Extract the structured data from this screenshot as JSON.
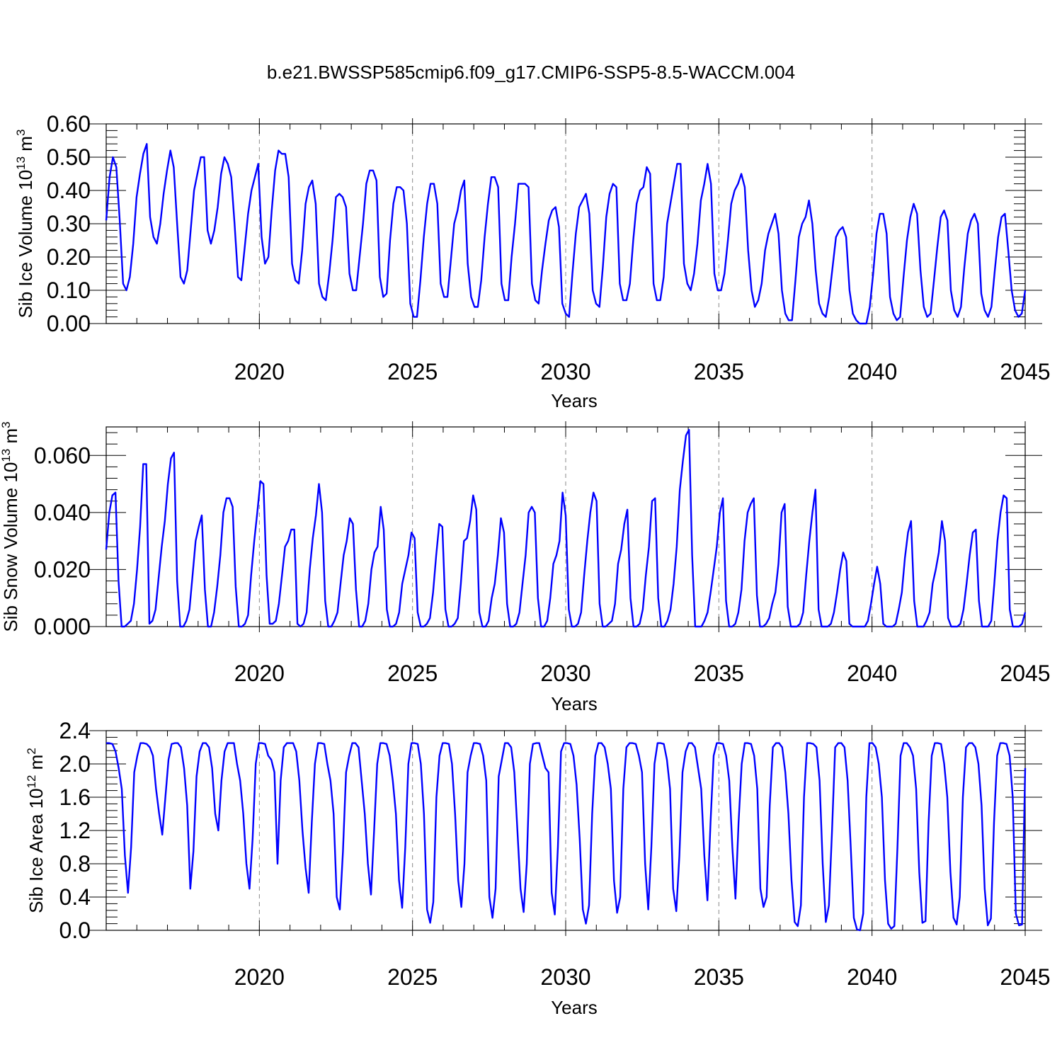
{
  "title": "b.e21.BWSSP585cmip6.f09_g17.CMIP6-SSP5-8.5-WACCM.004",
  "line_color": "#0000ff",
  "chart_data": [
    {
      "type": "line",
      "ylabel": "Sib Ice Volume 10",
      "ylabel_sup": "13",
      "ylabel_unit": " m",
      "ylabel_unit_sup": "3",
      "xlabel": "Years",
      "xlim": [
        2015,
        2045
      ],
      "ylim": [
        0,
        0.6
      ],
      "xticks": [
        2020,
        2025,
        2030,
        2035,
        2040,
        2045
      ],
      "xtick_labels": [
        "2020",
        "2025",
        "2030",
        "2035",
        "2040",
        "2045"
      ],
      "yticks": [
        0,
        0.1,
        0.2,
        0.3,
        0.4,
        0.5,
        0.6
      ],
      "ytick_labels": [
        "0.00",
        "0.10",
        "0.20",
        "0.30",
        "0.40",
        "0.50",
        "0.60"
      ],
      "grid": "dashed vertical at major x ticks",
      "series": [
        {
          "values": [
            0.31,
            0.44,
            0.5,
            0.47,
            0.31,
            0.12,
            0.1,
            0.14,
            0.24,
            0.38,
            0.45,
            0.51,
            0.54,
            0.32,
            0.26,
            0.24,
            0.3,
            0.39,
            0.46,
            0.52,
            0.47,
            0.3,
            0.14,
            0.12,
            0.16,
            0.28,
            0.4,
            0.45,
            0.5,
            0.5,
            0.28,
            0.24,
            0.28,
            0.35,
            0.45,
            0.5,
            0.48,
            0.44,
            0.3,
            0.14,
            0.13,
            0.23,
            0.33,
            0.4,
            0.44,
            0.48,
            0.26,
            0.18,
            0.2,
            0.34,
            0.46,
            0.52,
            0.51,
            0.51,
            0.44,
            0.18,
            0.13,
            0.12,
            0.22,
            0.36,
            0.41,
            0.43,
            0.36,
            0.12,
            0.08,
            0.07,
            0.15,
            0.25,
            0.38,
            0.39,
            0.38,
            0.35,
            0.15,
            0.1,
            0.1,
            0.2,
            0.3,
            0.42,
            0.46,
            0.46,
            0.43,
            0.14,
            0.08,
            0.09,
            0.25,
            0.36,
            0.41,
            0.41,
            0.4,
            0.3,
            0.06,
            0.02,
            0.02,
            0.13,
            0.26,
            0.36,
            0.42,
            0.42,
            0.36,
            0.12,
            0.08,
            0.08,
            0.19,
            0.3,
            0.34,
            0.4,
            0.43,
            0.18,
            0.08,
            0.05,
            0.05,
            0.13,
            0.26,
            0.36,
            0.44,
            0.44,
            0.41,
            0.12,
            0.07,
            0.07,
            0.2,
            0.3,
            0.42,
            0.42,
            0.42,
            0.41,
            0.12,
            0.07,
            0.06,
            0.16,
            0.24,
            0.31,
            0.34,
            0.35,
            0.29,
            0.06,
            0.03,
            0.02,
            0.15,
            0.27,
            0.35,
            0.37,
            0.39,
            0.33,
            0.1,
            0.06,
            0.05,
            0.17,
            0.32,
            0.39,
            0.42,
            0.41,
            0.12,
            0.07,
            0.07,
            0.12,
            0.25,
            0.36,
            0.4,
            0.41,
            0.47,
            0.45,
            0.12,
            0.07,
            0.07,
            0.14,
            0.3,
            0.36,
            0.42,
            0.48,
            0.48,
            0.18,
            0.12,
            0.1,
            0.15,
            0.24,
            0.37,
            0.42,
            0.48,
            0.42,
            0.15,
            0.1,
            0.1,
            0.15,
            0.25,
            0.36,
            0.4,
            0.42,
            0.45,
            0.41,
            0.22,
            0.1,
            0.05,
            0.07,
            0.12,
            0.22,
            0.27,
            0.3,
            0.33,
            0.27,
            0.1,
            0.03,
            0.01,
            0.01,
            0.13,
            0.26,
            0.3,
            0.32,
            0.37,
            0.3,
            0.16,
            0.06,
            0.03,
            0.02,
            0.08,
            0.17,
            0.26,
            0.28,
            0.29,
            0.26,
            0.1,
            0.03,
            0.01,
            0.0,
            0.0,
            0.0,
            0.05,
            0.15,
            0.27,
            0.33,
            0.33,
            0.27,
            0.08,
            0.03,
            0.01,
            0.02,
            0.14,
            0.25,
            0.32,
            0.36,
            0.33,
            0.16,
            0.05,
            0.02,
            0.03,
            0.13,
            0.23,
            0.32,
            0.34,
            0.31,
            0.1,
            0.04,
            0.02,
            0.05,
            0.17,
            0.27,
            0.31,
            0.33,
            0.3,
            0.09,
            0.04,
            0.02,
            0.05,
            0.16,
            0.26,
            0.32,
            0.33,
            0.22,
            0.1,
            0.04,
            0.02,
            0.03,
            0.1
          ]
        }
      ]
    },
    {
      "type": "line",
      "ylabel": "Sib Snow Volume 10",
      "ylabel_sup": "13",
      "ylabel_unit": " m",
      "ylabel_unit_sup": "3",
      "xlabel": "Years",
      "xlim": [
        2015,
        2045
      ],
      "ylim": [
        0,
        0.07
      ],
      "xticks": [
        2020,
        2025,
        2030,
        2035,
        2040,
        2045
      ],
      "xtick_labels": [
        "2020",
        "2025",
        "2030",
        "2035",
        "2040",
        "2045"
      ],
      "yticks": [
        0,
        0.02,
        0.04,
        0.06
      ],
      "ytick_labels": [
        "0.000",
        "0.020",
        "0.040",
        "0.060"
      ],
      "grid": "dashed vertical at major x ticks",
      "series": [
        {
          "values": [
            0.027,
            0.04,
            0.046,
            0.047,
            0.016,
            0.0,
            0.0,
            0.001,
            0.002,
            0.008,
            0.02,
            0.035,
            0.057,
            0.057,
            0.001,
            0.002,
            0.006,
            0.017,
            0.028,
            0.037,
            0.05,
            0.059,
            0.061,
            0.016,
            0.0,
            0.0,
            0.002,
            0.006,
            0.018,
            0.03,
            0.035,
            0.039,
            0.013,
            0.0,
            0.0,
            0.005,
            0.014,
            0.025,
            0.04,
            0.045,
            0.045,
            0.042,
            0.014,
            0.0,
            0.0,
            0.001,
            0.004,
            0.018,
            0.03,
            0.04,
            0.051,
            0.05,
            0.018,
            0.001,
            0.001,
            0.002,
            0.008,
            0.018,
            0.028,
            0.03,
            0.034,
            0.034,
            0.001,
            0.0,
            0.001,
            0.005,
            0.02,
            0.031,
            0.039,
            0.05,
            0.04,
            0.009,
            0.0,
            0.0,
            0.002,
            0.005,
            0.015,
            0.025,
            0.03,
            0.038,
            0.036,
            0.013,
            0.0,
            0.0,
            0.002,
            0.008,
            0.02,
            0.026,
            0.028,
            0.042,
            0.034,
            0.006,
            0.0,
            0.0,
            0.001,
            0.005,
            0.015,
            0.02,
            0.025,
            0.033,
            0.031,
            0.005,
            0.0,
            0.0,
            0.001,
            0.003,
            0.012,
            0.025,
            0.036,
            0.035,
            0.006,
            0.0,
            0.0,
            0.001,
            0.003,
            0.015,
            0.03,
            0.031,
            0.037,
            0.046,
            0.041,
            0.005,
            0.0,
            0.0,
            0.002,
            0.01,
            0.015,
            0.025,
            0.038,
            0.033,
            0.008,
            0.0,
            0.0,
            0.001,
            0.005,
            0.015,
            0.025,
            0.04,
            0.042,
            0.04,
            0.01,
            0.0,
            0.0,
            0.002,
            0.01,
            0.022,
            0.025,
            0.03,
            0.047,
            0.039,
            0.006,
            0.0,
            0.0,
            0.001,
            0.005,
            0.018,
            0.03,
            0.04,
            0.047,
            0.044,
            0.008,
            0.0,
            0.0,
            0.001,
            0.002,
            0.008,
            0.022,
            0.027,
            0.036,
            0.041,
            0.01,
            0.0,
            0.0,
            0.001,
            0.006,
            0.018,
            0.028,
            0.044,
            0.045,
            0.01,
            0.0,
            0.0,
            0.002,
            0.006,
            0.015,
            0.028,
            0.048,
            0.058,
            0.067,
            0.069,
            0.025,
            0.0,
            0.0,
            0.0,
            0.002,
            0.005,
            0.012,
            0.02,
            0.028,
            0.04,
            0.045,
            0.009,
            0.0,
            0.0,
            0.001,
            0.005,
            0.013,
            0.03,
            0.04,
            0.043,
            0.045,
            0.011,
            0.0,
            0.0,
            0.001,
            0.003,
            0.008,
            0.012,
            0.022,
            0.04,
            0.043,
            0.007,
            0.0,
            0.0,
            0.0,
            0.001,
            0.005,
            0.018,
            0.03,
            0.04,
            0.048,
            0.006,
            0.0,
            0.0,
            0.0,
            0.001,
            0.005,
            0.012,
            0.02,
            0.026,
            0.023,
            0.001,
            0.0,
            0.0,
            0.0,
            0.0,
            0.0,
            0.002,
            0.008,
            0.015,
            0.021,
            0.015,
            0.001,
            0.0,
            0.0,
            0.0,
            0.001,
            0.006,
            0.012,
            0.024,
            0.033,
            0.037,
            0.009,
            0.0,
            0.0,
            0.0,
            0.002,
            0.005,
            0.015,
            0.02,
            0.026,
            0.037,
            0.03,
            0.003,
            0.0,
            0.0,
            0.0,
            0.001,
            0.006,
            0.015,
            0.025,
            0.033,
            0.034,
            0.009,
            0.0,
            0.0,
            0.0,
            0.002,
            0.015,
            0.03,
            0.04,
            0.046,
            0.045,
            0.006,
            0.0,
            0.0,
            0.0,
            0.001,
            0.005
          ]
        }
      ]
    },
    {
      "type": "line",
      "ylabel": "Sib Ice Area 10",
      "ylabel_sup": "12",
      "ylabel_unit": " m",
      "ylabel_unit_sup": "2",
      "xlabel": "Years",
      "xlim": [
        2015,
        2045
      ],
      "ylim": [
        0,
        2.4
      ],
      "xticks": [
        2020,
        2025,
        2030,
        2035,
        2040,
        2045
      ],
      "xtick_labels": [
        "2020",
        "2025",
        "2030",
        "2035",
        "2040",
        "2045"
      ],
      "yticks": [
        0,
        0.4,
        0.8,
        1.2,
        1.6,
        2.0,
        2.4
      ],
      "ytick_labels": [
        "0.0",
        "0.4",
        "0.8",
        "1.2",
        "1.6",
        "2.0",
        "2.4"
      ],
      "grid": "dashed vertical at major x ticks",
      "series": [
        {
          "values": [
            2.25,
            2.25,
            2.24,
            2.15,
            1.95,
            1.7,
            0.9,
            0.45,
            1.0,
            1.9,
            2.1,
            2.25,
            2.25,
            2.24,
            2.2,
            2.1,
            1.7,
            1.4,
            1.15,
            1.6,
            2.05,
            2.24,
            2.25,
            2.25,
            2.2,
            1.95,
            1.5,
            0.5,
            0.95,
            1.85,
            2.15,
            2.25,
            2.25,
            2.2,
            1.95,
            1.4,
            1.2,
            1.8,
            2.15,
            2.25,
            2.25,
            2.25,
            2.0,
            1.8,
            1.4,
            0.8,
            0.5,
            1.1,
            2.0,
            2.25,
            2.25,
            2.24,
            2.1,
            2.05,
            1.9,
            0.8,
            1.8,
            2.2,
            2.25,
            2.25,
            2.25,
            2.15,
            1.8,
            1.2,
            0.75,
            0.45,
            1.3,
            2.0,
            2.25,
            2.25,
            2.24,
            2.0,
            1.8,
            1.4,
            0.4,
            0.25,
            0.95,
            1.9,
            2.1,
            2.25,
            2.25,
            2.2,
            1.8,
            1.4,
            0.8,
            0.43,
            1.2,
            2.0,
            2.25,
            2.25,
            2.24,
            2.1,
            1.8,
            1.4,
            0.6,
            0.27,
            1.0,
            2.0,
            2.25,
            2.25,
            2.24,
            2.0,
            1.4,
            0.25,
            0.09,
            0.34,
            1.6,
            2.1,
            2.25,
            2.25,
            2.24,
            2.0,
            1.4,
            0.6,
            0.28,
            0.8,
            1.9,
            2.1,
            2.25,
            2.25,
            2.24,
            2.1,
            1.8,
            0.4,
            0.15,
            0.5,
            1.85,
            2.05,
            2.25,
            2.25,
            2.2,
            1.9,
            1.2,
            0.5,
            0.22,
            0.8,
            2.0,
            2.24,
            2.25,
            2.25,
            2.1,
            1.95,
            1.9,
            0.45,
            0.19,
            1.0,
            2.15,
            2.25,
            2.25,
            2.24,
            2.1,
            1.75,
            1.1,
            0.25,
            0.08,
            0.3,
            1.4,
            2.1,
            2.25,
            2.25,
            2.2,
            2.0,
            1.7,
            0.6,
            0.21,
            0.4,
            1.7,
            2.2,
            2.25,
            2.25,
            2.24,
            2.1,
            1.9,
            0.8,
            0.25,
            1.0,
            2.0,
            2.25,
            2.25,
            2.24,
            2.05,
            1.7,
            0.5,
            0.23,
            0.9,
            1.9,
            2.15,
            2.25,
            2.25,
            2.2,
            1.95,
            1.7,
            0.9,
            0.36,
            1.3,
            2.1,
            2.25,
            2.25,
            2.24,
            2.1,
            1.8,
            1.0,
            0.38,
            1.3,
            2.0,
            2.25,
            2.25,
            2.24,
            2.1,
            1.7,
            0.5,
            0.28,
            0.4,
            1.5,
            2.2,
            2.25,
            2.25,
            2.2,
            1.9,
            1.4,
            0.6,
            0.1,
            0.05,
            0.3,
            1.6,
            2.25,
            2.25,
            2.24,
            2.2,
            1.8,
            0.8,
            0.1,
            0.3,
            1.2,
            2.2,
            2.25,
            2.25,
            2.2,
            1.8,
            1.0,
            0.15,
            0.01,
            0.0,
            0.2,
            1.6,
            2.25,
            2.25,
            2.2,
            2.0,
            1.6,
            0.6,
            0.08,
            0.02,
            0.05,
            1.0,
            2.1,
            2.25,
            2.25,
            2.2,
            2.1,
            1.7,
            0.7,
            0.09,
            0.11,
            1.3,
            2.1,
            2.25,
            2.25,
            2.24,
            2.0,
            1.6,
            0.7,
            0.15,
            0.07,
            0.4,
            1.6,
            2.2,
            2.25,
            2.25,
            2.2,
            2.0,
            1.5,
            0.5,
            0.06,
            0.14,
            1.3,
            2.1,
            2.25,
            2.25,
            2.24,
            2.1,
            1.6,
            0.2,
            0.06,
            0.07,
            1.95
          ]
        }
      ]
    }
  ]
}
